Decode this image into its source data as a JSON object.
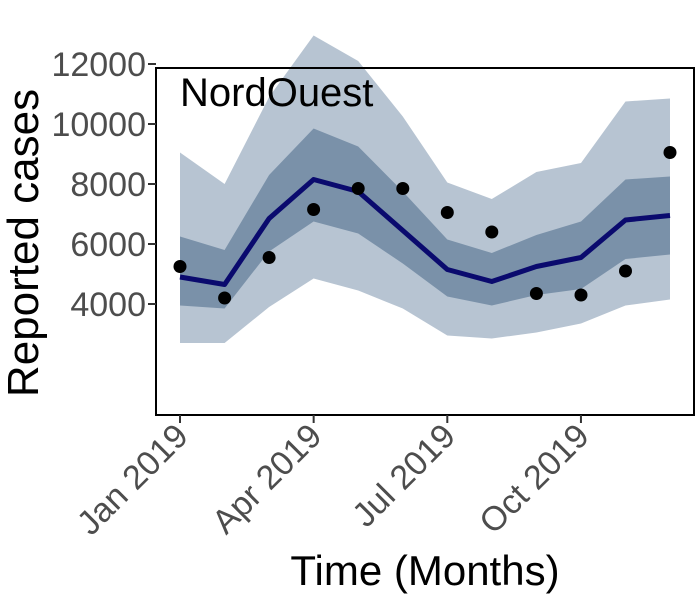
{
  "chart_data": {
    "type": "line",
    "title": "",
    "panel_label": "NordOuest",
    "xlabel": "Time (Months)",
    "ylabel": "Reported cases",
    "x": [
      "2019-01",
      "2019-02",
      "2019-03",
      "2019-04",
      "2019-05",
      "2019-06",
      "2019-07",
      "2019-08",
      "2019-09",
      "2019-10",
      "2019-11",
      "2019-12"
    ],
    "x_tick_labels": [
      "Jan 2019",
      "Apr 2019",
      "Jul 2019",
      "Oct 2019"
    ],
    "x_tick_values": [
      "2019-01",
      "2019-04",
      "2019-07",
      "2019-10"
    ],
    "y_ticks": [
      4000,
      6000,
      8000,
      10000,
      12000
    ],
    "series": [
      {
        "role": "median",
        "color": "#0a0a6e",
        "values": [
          4900,
          4650,
          6850,
          8150,
          7750,
          6450,
          5150,
          4750,
          5250,
          5550,
          6800,
          6950
        ]
      },
      {
        "role": "band-inner",
        "color": "#7a91a9",
        "lower": [
          3950,
          3850,
          5750,
          6750,
          6350,
          5350,
          4250,
          3950,
          4300,
          4500,
          5500,
          5650
        ],
        "upper": [
          6250,
          5800,
          8300,
          9850,
          9250,
          7750,
          6150,
          5700,
          6300,
          6750,
          8150,
          8250
        ]
      },
      {
        "role": "band-outer",
        "color": "#b7c4d2",
        "lower": [
          2700,
          2700,
          3900,
          4850,
          4450,
          3850,
          2950,
          2850,
          3050,
          3350,
          3950,
          4150
        ],
        "upper": [
          9050,
          8000,
          10900,
          12950,
          12100,
          10250,
          8050,
          7500,
          8400,
          8700,
          10750,
          10850
        ]
      },
      {
        "role": "observed",
        "color": "#000000",
        "values": [
          5250,
          4200,
          5550,
          7150,
          7850,
          7850,
          7050,
          6400,
          4350,
          4300,
          5100,
          9050
        ]
      }
    ]
  }
}
